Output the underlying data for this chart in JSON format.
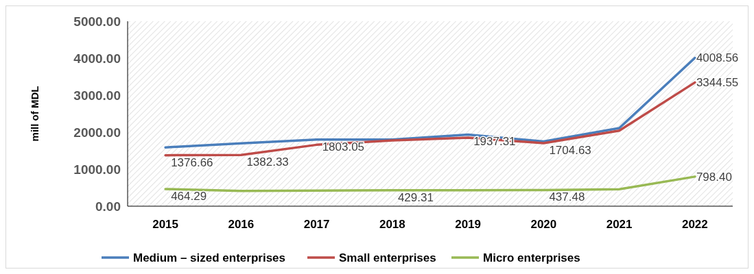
{
  "chart_data": {
    "type": "line",
    "ylabel": "mill of MDL",
    "categories": [
      "2015",
      "2016",
      "2017",
      "2018",
      "2019",
      "2020",
      "2021",
      "2022"
    ],
    "ylim": [
      0,
      5000
    ],
    "yticks": [
      {
        "value": 0,
        "label": "0.00"
      },
      {
        "value": 1000,
        "label": "1000.00"
      },
      {
        "value": 2000,
        "label": "2000.00"
      },
      {
        "value": 3000,
        "label": "3000.00"
      },
      {
        "value": 4000,
        "label": "4000.00"
      },
      {
        "value": 5000,
        "label": "5000.00"
      }
    ],
    "legend": "bottom",
    "grid": false,
    "marker": "none",
    "line_style": "solid",
    "series": [
      {
        "name": "Medium – sized enterprises",
        "color": "#4a7ebb",
        "values": [
          1590,
          1700,
          1803.05,
          1800,
          1937.31,
          1750,
          2110,
          4008.56
        ],
        "value_labels": [
          null,
          null,
          "1803.05",
          null,
          "1937.31",
          null,
          null,
          "4008.56"
        ]
      },
      {
        "name": "Small enterprises",
        "color": "#be4b48",
        "values": [
          1376.66,
          1382.33,
          1660,
          1780,
          1850,
          1704.63,
          2040,
          3344.55
        ],
        "value_labels": [
          "1376.66",
          "1382.33",
          null,
          null,
          null,
          "1704.63",
          null,
          "3344.55"
        ]
      },
      {
        "name": "Micro enterprises",
        "color": "#98b954",
        "values": [
          464.29,
          410,
          420,
          429.31,
          430,
          437.48,
          460,
          798.4
        ],
        "value_labels": [
          "464.29",
          null,
          null,
          "429.31",
          null,
          "437.48",
          null,
          "798.40"
        ]
      }
    ]
  }
}
